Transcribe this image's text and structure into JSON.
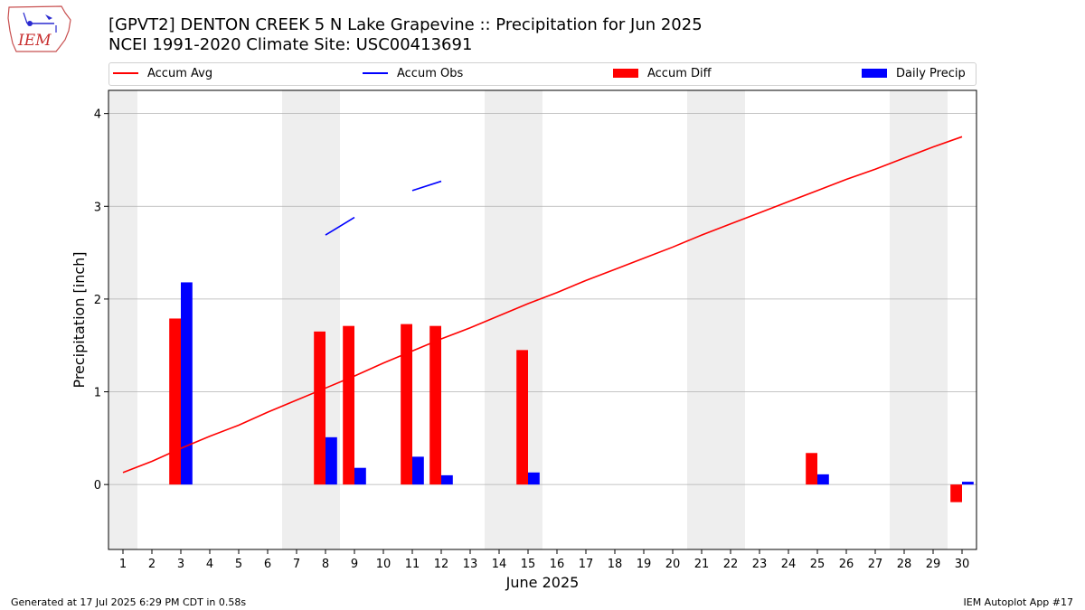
{
  "header": {
    "logo_text": "IEM",
    "title_line1": "[GPVT2] DENTON CREEK 5 N Lake Grapevine :: Precipitation for Jun 2025",
    "title_line2": "NCEI 1991-2020 Climate Site: USC00413691"
  },
  "legend": {
    "accum_avg": "Accum Avg",
    "accum_obs": "Accum Obs",
    "accum_diff": "Accum Diff",
    "daily_precip": "Daily Precip"
  },
  "colors": {
    "accum_avg": "#ff0000",
    "accum_obs": "#0000ff",
    "accum_diff": "#ff0000",
    "daily_precip": "#0000ff",
    "weekend_shading": "#eeeeee",
    "grid": "#b0b0b0"
  },
  "footer": {
    "generated": "Generated at 17 Jul 2025 6:29 PM CDT in 0.58s",
    "app": "IEM Autoplot App #17"
  },
  "chart_data": {
    "type": "bar",
    "xlabel": "June 2025",
    "ylabel": "Precipitation [inch]",
    "xlim": [
      0.5,
      30.5
    ],
    "ylim": [
      -0.7,
      4.25
    ],
    "yticks": [
      0,
      1,
      2,
      3,
      4
    ],
    "grid": true,
    "legend_position": "top",
    "shaded_days": [
      1,
      7,
      8,
      14,
      15,
      21,
      22,
      28,
      29
    ],
    "categories": [
      "1",
      "2",
      "3",
      "4",
      "5",
      "6",
      "7",
      "8",
      "9",
      "10",
      "11",
      "12",
      "13",
      "14",
      "15",
      "16",
      "17",
      "18",
      "19",
      "20",
      "21",
      "22",
      "23",
      "24",
      "25",
      "26",
      "27",
      "28",
      "29",
      "30"
    ],
    "series": [
      {
        "name": "Accum Avg",
        "type": "line",
        "values": [
          0.13,
          0.25,
          0.39,
          0.52,
          0.64,
          0.78,
          0.91,
          1.04,
          1.17,
          1.31,
          1.44,
          1.57,
          1.69,
          1.82,
          1.95,
          2.07,
          2.2,
          2.32,
          2.44,
          2.56,
          2.69,
          2.81,
          2.93,
          3.05,
          3.17,
          3.29,
          3.4,
          3.52,
          3.64,
          3.75
        ]
      },
      {
        "name": "Accum Obs",
        "type": "line",
        "values": [
          null,
          null,
          null,
          null,
          null,
          null,
          null,
          2.69,
          2.88,
          null,
          3.17,
          3.27,
          null,
          null,
          null,
          null,
          null,
          null,
          null,
          null,
          null,
          null,
          null,
          null,
          null,
          null,
          null,
          null,
          null,
          null
        ]
      },
      {
        "name": "Accum Diff",
        "type": "bar",
        "values": [
          null,
          null,
          1.79,
          null,
          null,
          null,
          null,
          1.65,
          1.71,
          null,
          1.73,
          1.71,
          null,
          null,
          1.45,
          null,
          null,
          null,
          null,
          null,
          null,
          null,
          null,
          null,
          0.34,
          null,
          null,
          null,
          null,
          -0.19
        ]
      },
      {
        "name": "Daily Precip",
        "type": "bar",
        "values": [
          null,
          null,
          2.18,
          null,
          null,
          null,
          null,
          0.51,
          0.18,
          null,
          0.3,
          0.1,
          null,
          null,
          0.13,
          null,
          null,
          null,
          null,
          null,
          null,
          null,
          null,
          null,
          0.11,
          null,
          null,
          null,
          null,
          0.03
        ]
      }
    ]
  }
}
